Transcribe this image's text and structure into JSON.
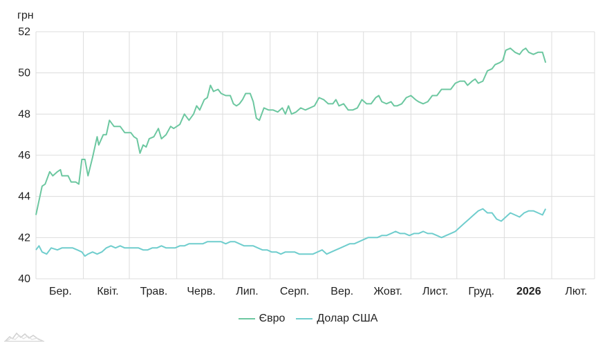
{
  "chart_data": {
    "type": "line",
    "unit_label": "грн",
    "ylim": [
      40,
      52
    ],
    "y_ticks": [
      40,
      42,
      44,
      46,
      48,
      50,
      52
    ],
    "x_range": [
      0,
      365
    ],
    "x_ticks": [
      {
        "label": "Бер.",
        "x": 16,
        "bold": false
      },
      {
        "label": "Квіт.",
        "x": 47,
        "bold": false
      },
      {
        "label": "Трав.",
        "x": 77,
        "bold": false
      },
      {
        "label": "Черв.",
        "x": 108,
        "bold": false
      },
      {
        "label": "Лип.",
        "x": 138,
        "bold": false
      },
      {
        "label": "Серп.",
        "x": 169,
        "bold": false
      },
      {
        "label": "Вер.",
        "x": 200,
        "bold": false
      },
      {
        "label": "Жовт.",
        "x": 230,
        "bold": false
      },
      {
        "label": "Лист.",
        "x": 261,
        "bold": false
      },
      {
        "label": "Груд.",
        "x": 291,
        "bold": false
      },
      {
        "label": "2026",
        "x": 322,
        "bold": true
      },
      {
        "label": "Лют.",
        "x": 353,
        "bold": false
      }
    ],
    "gridlines": [
      0,
      31,
      61,
      92,
      122,
      153,
      184,
      214,
      245,
      275,
      306,
      337,
      365
    ],
    "grid": true,
    "legend_position": "bottom-center",
    "series": [
      {
        "name": "Євро",
        "color": "#6cc7a0",
        "points": [
          [
            0,
            43.1
          ],
          [
            4,
            44.5
          ],
          [
            6,
            44.6
          ],
          [
            9,
            45.2
          ],
          [
            11,
            45.0
          ],
          [
            14,
            45.2
          ],
          [
            16,
            45.3
          ],
          [
            17,
            45.0
          ],
          [
            21,
            45.0
          ],
          [
            23,
            44.7
          ],
          [
            26,
            44.7
          ],
          [
            28,
            44.6
          ],
          [
            30,
            45.8
          ],
          [
            32,
            45.8
          ],
          [
            34,
            45.0
          ],
          [
            37,
            45.9
          ],
          [
            40,
            46.9
          ],
          [
            41,
            46.5
          ],
          [
            44,
            47.0
          ],
          [
            46,
            47.0
          ],
          [
            48,
            47.7
          ],
          [
            51,
            47.4
          ],
          [
            55,
            47.4
          ],
          [
            58,
            47.1
          ],
          [
            62,
            47.1
          ],
          [
            64,
            46.9
          ],
          [
            66,
            46.8
          ],
          [
            68,
            46.1
          ],
          [
            70,
            46.5
          ],
          [
            72,
            46.4
          ],
          [
            74,
            46.8
          ],
          [
            77,
            46.9
          ],
          [
            80,
            47.3
          ],
          [
            82,
            46.8
          ],
          [
            85,
            47.0
          ],
          [
            88,
            47.4
          ],
          [
            90,
            47.3
          ],
          [
            94,
            47.5
          ],
          [
            97,
            48.0
          ],
          [
            100,
            47.7
          ],
          [
            103,
            48.0
          ],
          [
            105,
            48.4
          ],
          [
            107,
            48.2
          ],
          [
            110,
            48.7
          ],
          [
            112,
            48.8
          ],
          [
            114,
            49.4
          ],
          [
            116,
            49.1
          ],
          [
            119,
            49.2
          ],
          [
            121,
            49.0
          ],
          [
            124,
            48.9
          ],
          [
            127,
            48.9
          ],
          [
            129,
            48.5
          ],
          [
            131,
            48.4
          ],
          [
            133,
            48.5
          ],
          [
            135,
            48.7
          ],
          [
            137,
            49.0
          ],
          [
            140,
            49.0
          ],
          [
            142,
            48.6
          ],
          [
            144,
            47.8
          ],
          [
            146,
            47.7
          ],
          [
            149,
            48.3
          ],
          [
            152,
            48.2
          ],
          [
            155,
            48.2
          ],
          [
            158,
            48.1
          ],
          [
            161,
            48.3
          ],
          [
            163,
            48.0
          ],
          [
            165,
            48.4
          ],
          [
            167,
            48.0
          ],
          [
            170,
            48.1
          ],
          [
            173,
            48.3
          ],
          [
            176,
            48.2
          ],
          [
            179,
            48.3
          ],
          [
            182,
            48.4
          ],
          [
            185,
            48.8
          ],
          [
            188,
            48.7
          ],
          [
            191,
            48.5
          ],
          [
            194,
            48.5
          ],
          [
            196,
            48.7
          ],
          [
            198,
            48.4
          ],
          [
            201,
            48.5
          ],
          [
            204,
            48.2
          ],
          [
            207,
            48.2
          ],
          [
            210,
            48.3
          ],
          [
            213,
            48.7
          ],
          [
            216,
            48.5
          ],
          [
            219,
            48.5
          ],
          [
            222,
            48.8
          ],
          [
            224,
            48.9
          ],
          [
            226,
            48.6
          ],
          [
            229,
            48.5
          ],
          [
            232,
            48.6
          ],
          [
            234,
            48.4
          ],
          [
            236,
            48.4
          ],
          [
            239,
            48.5
          ],
          [
            242,
            48.8
          ],
          [
            245,
            48.9
          ],
          [
            248,
            48.7
          ],
          [
            250,
            48.6
          ],
          [
            253,
            48.5
          ],
          [
            256,
            48.6
          ],
          [
            259,
            48.9
          ],
          [
            262,
            48.9
          ],
          [
            265,
            49.2
          ],
          [
            268,
            49.2
          ],
          [
            271,
            49.2
          ],
          [
            274,
            49.5
          ],
          [
            277,
            49.6
          ],
          [
            280,
            49.6
          ],
          [
            282,
            49.4
          ],
          [
            285,
            49.6
          ],
          [
            287,
            49.7
          ],
          [
            289,
            49.5
          ],
          [
            292,
            49.6
          ],
          [
            295,
            50.1
          ],
          [
            298,
            50.2
          ],
          [
            300,
            50.4
          ],
          [
            303,
            50.5
          ],
          [
            305,
            50.6
          ],
          [
            307,
            51.1
          ],
          [
            310,
            51.2
          ],
          [
            313,
            51.0
          ],
          [
            316,
            50.9
          ],
          [
            318,
            51.1
          ],
          [
            320,
            51.2
          ],
          [
            322,
            51.0
          ],
          [
            325,
            50.9
          ],
          [
            328,
            51.0
          ],
          [
            331,
            51.0
          ],
          [
            333,
            50.5
          ]
        ]
      },
      {
        "name": "Долар США",
        "color": "#6fcdcd",
        "points": [
          [
            0,
            41.4
          ],
          [
            2,
            41.6
          ],
          [
            4,
            41.3
          ],
          [
            7,
            41.2
          ],
          [
            10,
            41.5
          ],
          [
            14,
            41.4
          ],
          [
            17,
            41.5
          ],
          [
            21,
            41.5
          ],
          [
            24,
            41.5
          ],
          [
            27,
            41.4
          ],
          [
            30,
            41.3
          ],
          [
            32,
            41.1
          ],
          [
            34,
            41.2
          ],
          [
            37,
            41.3
          ],
          [
            40,
            41.2
          ],
          [
            43,
            41.3
          ],
          [
            46,
            41.5
          ],
          [
            49,
            41.6
          ],
          [
            52,
            41.5
          ],
          [
            55,
            41.6
          ],
          [
            58,
            41.5
          ],
          [
            61,
            41.5
          ],
          [
            64,
            41.5
          ],
          [
            67,
            41.5
          ],
          [
            70,
            41.4
          ],
          [
            73,
            41.4
          ],
          [
            76,
            41.5
          ],
          [
            79,
            41.5
          ],
          [
            82,
            41.6
          ],
          [
            85,
            41.5
          ],
          [
            88,
            41.5
          ],
          [
            91,
            41.5
          ],
          [
            94,
            41.6
          ],
          [
            97,
            41.6
          ],
          [
            100,
            41.7
          ],
          [
            103,
            41.7
          ],
          [
            106,
            41.7
          ],
          [
            109,
            41.7
          ],
          [
            112,
            41.8
          ],
          [
            115,
            41.8
          ],
          [
            118,
            41.8
          ],
          [
            121,
            41.8
          ],
          [
            124,
            41.7
          ],
          [
            127,
            41.8
          ],
          [
            130,
            41.8
          ],
          [
            133,
            41.7
          ],
          [
            136,
            41.6
          ],
          [
            139,
            41.6
          ],
          [
            142,
            41.6
          ],
          [
            145,
            41.5
          ],
          [
            148,
            41.4
          ],
          [
            151,
            41.4
          ],
          [
            154,
            41.3
          ],
          [
            157,
            41.3
          ],
          [
            160,
            41.2
          ],
          [
            163,
            41.3
          ],
          [
            166,
            41.3
          ],
          [
            169,
            41.3
          ],
          [
            172,
            41.2
          ],
          [
            175,
            41.2
          ],
          [
            178,
            41.2
          ],
          [
            181,
            41.2
          ],
          [
            184,
            41.3
          ],
          [
            187,
            41.4
          ],
          [
            190,
            41.2
          ],
          [
            193,
            41.3
          ],
          [
            196,
            41.4
          ],
          [
            199,
            41.5
          ],
          [
            202,
            41.6
          ],
          [
            205,
            41.7
          ],
          [
            208,
            41.7
          ],
          [
            211,
            41.8
          ],
          [
            214,
            41.9
          ],
          [
            217,
            42.0
          ],
          [
            220,
            42.0
          ],
          [
            223,
            42.0
          ],
          [
            226,
            42.1
          ],
          [
            229,
            42.1
          ],
          [
            232,
            42.2
          ],
          [
            235,
            42.3
          ],
          [
            238,
            42.2
          ],
          [
            241,
            42.2
          ],
          [
            244,
            42.1
          ],
          [
            247,
            42.2
          ],
          [
            250,
            42.2
          ],
          [
            253,
            42.3
          ],
          [
            256,
            42.2
          ],
          [
            259,
            42.2
          ],
          [
            262,
            42.1
          ],
          [
            265,
            42.0
          ],
          [
            268,
            42.1
          ],
          [
            271,
            42.2
          ],
          [
            274,
            42.3
          ],
          [
            277,
            42.5
          ],
          [
            280,
            42.7
          ],
          [
            283,
            42.9
          ],
          [
            286,
            43.1
          ],
          [
            289,
            43.3
          ],
          [
            292,
            43.4
          ],
          [
            295,
            43.2
          ],
          [
            298,
            43.2
          ],
          [
            301,
            42.9
          ],
          [
            304,
            42.8
          ],
          [
            307,
            43.0
          ],
          [
            310,
            43.2
          ],
          [
            313,
            43.1
          ],
          [
            316,
            43.0
          ],
          [
            319,
            43.2
          ],
          [
            322,
            43.3
          ],
          [
            325,
            43.3
          ],
          [
            328,
            43.2
          ],
          [
            331,
            43.1
          ],
          [
            333,
            43.4
          ]
        ]
      }
    ]
  }
}
